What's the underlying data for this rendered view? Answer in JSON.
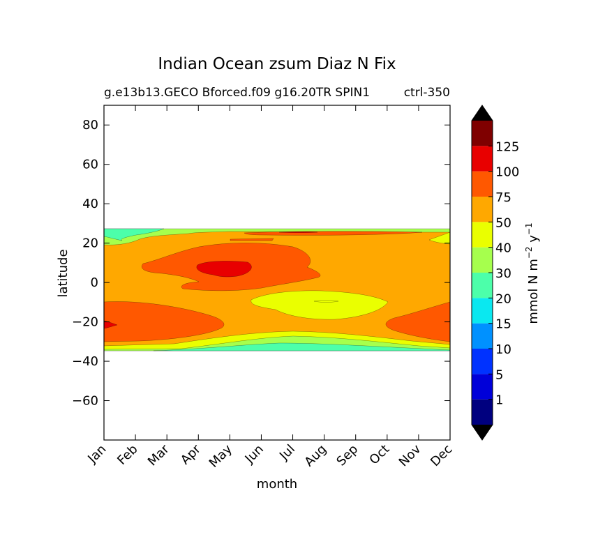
{
  "chart_data": {
    "type": "heatmap",
    "title": "Indian Ocean zsum Diaz N Fix",
    "subtitle_left": "g.e13b13.GECO Bforced.f09 g16.20TR SPIN1",
    "subtitle_right": "ctrl-350",
    "xlabel": "month",
    "ylabel": "latitude",
    "x_categories": [
      "Jan",
      "Feb",
      "Mar",
      "Apr",
      "May",
      "Jun",
      "Jul",
      "Aug",
      "Sep",
      "Oct",
      "Nov",
      "Dec"
    ],
    "ylim": [
      -80,
      90
    ],
    "y_ticks": [
      80,
      60,
      40,
      20,
      0,
      -20,
      -40,
      -60
    ],
    "data_lat_range": [
      -34,
      27
    ],
    "colorbar": {
      "label": "mmol N m⁻² y⁻¹",
      "label_main": "mmol N m",
      "label_exp1": "−2",
      "label_mid": " y",
      "label_exp2": "−1",
      "levels": [
        0,
        1,
        5,
        10,
        15,
        20,
        30,
        40,
        50,
        75,
        100,
        125,
        150
      ],
      "tick_labels": [
        "1",
        "5",
        "10",
        "15",
        "20",
        "30",
        "40",
        "50",
        "75",
        "100",
        "125"
      ],
      "colors": [
        "#00007f",
        "#0000d9",
        "#0032ff",
        "#0091ff",
        "#0ae8f0",
        "#4cffaa",
        "#a6ff4d",
        "#eaff00",
        "#ffa800",
        "#ff5800",
        "#e80000",
        "#7f0000"
      ],
      "extend": "both",
      "under_color": "#000000",
      "over_color": "#000000"
    },
    "regions": [
      {
        "name": "background",
        "value": "50-75"
      },
      {
        "name": "north-edge-band",
        "value": "30-50"
      },
      {
        "name": "north-arm-75-100",
        "value": "75-100"
      },
      {
        "name": "central-blob-75-100",
        "value": "75-100"
      },
      {
        "name": "core-100-125",
        "value": "100-125"
      },
      {
        "name": "south-west-75-100",
        "value": "75-100"
      },
      {
        "name": "south-east-75-100",
        "value": "75-100"
      },
      {
        "name": "equatorial-low-40-50",
        "value": "40-50"
      },
      {
        "name": "southern-gradient",
        "value": "20-50"
      }
    ]
  }
}
